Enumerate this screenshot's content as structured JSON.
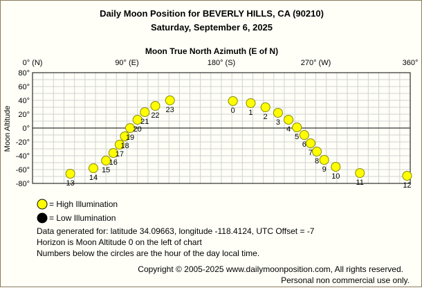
{
  "page": {
    "title": "Daily Moon Position for BEVERLY HILLS, CA (90210)",
    "subtitle": "Saturday, September 6, 2025"
  },
  "chart_data": {
    "type": "scatter",
    "title": "Daily Moon Position for BEVERLY HILLS, CA (90210)",
    "subtitle": "Saturday, September 6, 2025",
    "xlabel": "Moon True North Azimuth (E of N)",
    "ylabel": "Moon Altitude",
    "xlim": [
      0,
      360
    ],
    "ylim": [
      -80,
      80
    ],
    "x_ticks": [
      {
        "value": 0,
        "label": "0° (N)"
      },
      {
        "value": 90,
        "label": "90° (E)"
      },
      {
        "value": 180,
        "label": "180° (S)"
      },
      {
        "value": 270,
        "label": "270° (W)"
      },
      {
        "value": 360,
        "label": "360°"
      }
    ],
    "y_ticks": [
      {
        "value": 80,
        "label": "80°"
      },
      {
        "value": 60,
        "label": "60°"
      },
      {
        "value": 40,
        "label": "40°"
      },
      {
        "value": 20,
        "label": "20°"
      },
      {
        "value": 0,
        "label": "0°"
      },
      {
        "value": -20,
        "label": "-20°"
      },
      {
        "value": -40,
        "label": "-40°"
      },
      {
        "value": -60,
        "label": "-60°"
      },
      {
        "value": -80,
        "label": "-80°"
      }
    ],
    "grid": true,
    "horizon_line": 0,
    "series": [
      {
        "name": "High Illumination",
        "color": "#ffff00",
        "points": [
          {
            "hour": "0",
            "x": 191,
            "y": 39
          },
          {
            "hour": "1",
            "x": 208,
            "y": 36
          },
          {
            "hour": "2",
            "x": 222,
            "y": 30
          },
          {
            "hour": "3",
            "x": 234,
            "y": 22
          },
          {
            "hour": "4",
            "x": 244,
            "y": 12
          },
          {
            "hour": "5",
            "x": 252,
            "y": 1
          },
          {
            "hour": "6",
            "x": 259,
            "y": -10
          },
          {
            "hour": "7",
            "x": 265,
            "y": -22
          },
          {
            "hour": "8",
            "x": 271,
            "y": -34
          },
          {
            "hour": "9",
            "x": 278,
            "y": -46
          },
          {
            "hour": "10",
            "x": 289,
            "y": -56
          },
          {
            "hour": "11",
            "x": 312,
            "y": -65
          },
          {
            "hour": "12",
            "x": 357,
            "y": -69
          },
          {
            "hour": "13",
            "x": 36,
            "y": -66
          },
          {
            "hour": "14",
            "x": 58,
            "y": -58
          },
          {
            "hour": "15",
            "x": 70,
            "y": -47
          },
          {
            "hour": "16",
            "x": 77,
            "y": -36
          },
          {
            "hour": "17",
            "x": 83,
            "y": -24
          },
          {
            "hour": "18",
            "x": 88,
            "y": -12
          },
          {
            "hour": "19",
            "x": 93,
            "y": 0
          },
          {
            "hour": "20",
            "x": 100,
            "y": 12
          },
          {
            "hour": "21",
            "x": 107,
            "y": 23
          },
          {
            "hour": "22",
            "x": 117,
            "y": 32
          },
          {
            "hour": "23",
            "x": 131,
            "y": 40
          }
        ]
      }
    ]
  },
  "legend": {
    "high": "= High Illumination",
    "low": "= Low Illumination",
    "high_color": "#ffff00",
    "low_color": "#000000"
  },
  "notes": {
    "line1": "Data generated for: latitude 34.09663, longitude -118.4124, UTC Offset = -7",
    "line2": "Horizon is Moon Altitude 0 on the left of chart",
    "line3": "Numbers below the circles are the hour of the day local time."
  },
  "footer": {
    "copyright": "Copyright © 2005-2025 www.dailymoonposition.com, All rights reserved.",
    "license": "Personal non commercial use only."
  }
}
